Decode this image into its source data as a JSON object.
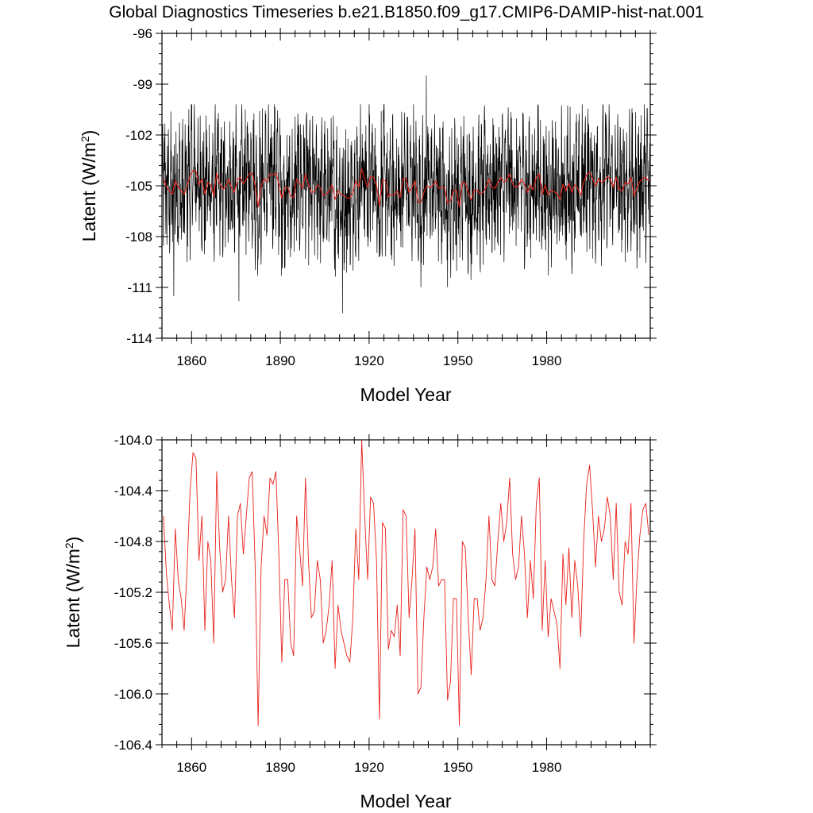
{
  "figure": {
    "title": "Global Diagnostics Timeseries b.e21.B1850.f09_g17.CMIP6-DAMIP-hist-nat.001"
  },
  "colors": {
    "monthly_series": "#000000",
    "annual_series": "#e8231c",
    "axes": "#000000"
  },
  "chart_data": [
    {
      "type": "line",
      "name": "top-panel",
      "xlabel": "Model Year",
      "ylabel": "Latent (W/m²)",
      "ylabel_main": "Latent (W/m",
      "ylabel_sup": "2",
      "ylabel_end": ")",
      "xlim": [
        1850,
        2015
      ],
      "ylim": [
        -114,
        -96
      ],
      "xticks": [
        1860,
        1890,
        1920,
        1950,
        1980
      ],
      "xtick_labels": [
        "1860",
        "1890",
        "1920",
        "1950",
        "1980"
      ],
      "yticks": [
        -114,
        -111,
        -108,
        -105,
        -102,
        -99,
        -96
      ],
      "ytick_labels": [
        "-114",
        "-111",
        "-108",
        "-105",
        "-102",
        "-99",
        "-96"
      ],
      "grid": false,
      "series": [
        {
          "style": "monthly",
          "color": "#000000",
          "description_hint": "monthly values oscillating roughly between -111 and -101, with extremes near -98.5 (1939) and -112.5 (1911)",
          "start_year": 1850,
          "step_years": 0.0833333,
          "n": 1980,
          "amplitude_center": -105.0,
          "notable_points": [
            {
              "x": 1939.3,
              "y": -98.5
            },
            {
              "x": 1911.0,
              "y": -112.5
            },
            {
              "x": 1876.0,
              "y": -111.8
            },
            {
              "x": 1854.0,
              "y": -111.5
            }
          ]
        },
        {
          "style": "annual",
          "color": "#e8231c",
          "ref": "bottom-panel.annual"
        }
      ]
    },
    {
      "type": "line",
      "name": "bottom-panel",
      "xlabel": "Model Year",
      "ylabel": "Latent (W/m²)",
      "ylabel_main": "Latent (W/m",
      "ylabel_sup": "2",
      "ylabel_end": ")",
      "xlim": [
        1850,
        2015
      ],
      "ylim": [
        -106.4,
        -104.0
      ],
      "xticks": [
        1860,
        1890,
        1920,
        1950,
        1980
      ],
      "xtick_labels": [
        "1860",
        "1890",
        "1920",
        "1950",
        "1980"
      ],
      "yticks": [
        -106.4,
        -106.0,
        -105.6,
        -105.2,
        -104.8,
        -104.4,
        -104.0
      ],
      "ytick_labels": [
        "-106.4",
        "-106.0",
        "-105.6",
        "-105.2",
        "-104.8",
        "-104.4",
        "-104.0"
      ],
      "grid": false,
      "series": [
        {
          "style": "annual",
          "color": "#e8231c",
          "x_start": 1850,
          "x_step": 1,
          "values": [
            -104.6,
            -105.05,
            -105.3,
            -105.5,
            -104.7,
            -105.1,
            -105.25,
            -105.5,
            -105.0,
            -104.4,
            -104.1,
            -104.15,
            -104.95,
            -104.6,
            -105.5,
            -104.8,
            -104.95,
            -105.6,
            -104.25,
            -104.85,
            -105.2,
            -105.1,
            -104.6,
            -105.1,
            -105.4,
            -104.6,
            -104.5,
            -104.9,
            -104.6,
            -104.3,
            -104.25,
            -105.0,
            -106.25,
            -105.0,
            -104.6,
            -104.75,
            -104.3,
            -104.35,
            -104.25,
            -104.9,
            -105.75,
            -105.1,
            -105.1,
            -105.6,
            -105.7,
            -104.6,
            -104.85,
            -105.15,
            -104.3,
            -104.95,
            -105.4,
            -105.35,
            -104.95,
            -105.1,
            -105.6,
            -105.5,
            -105.3,
            -104.95,
            -105.8,
            -105.3,
            -105.5,
            -105.6,
            -105.7,
            -105.75,
            -105.4,
            -104.7,
            -105.1,
            -104.0,
            -104.6,
            -105.1,
            -104.45,
            -104.5,
            -104.95,
            -106.2,
            -104.65,
            -104.7,
            -105.65,
            -105.5,
            -105.55,
            -105.3,
            -105.7,
            -104.55,
            -104.6,
            -105.4,
            -105.1,
            -104.7,
            -106.0,
            -105.95,
            -105.4,
            -105.0,
            -105.1,
            -105.0,
            -104.7,
            -105.15,
            -105.1,
            -105.1,
            -106.05,
            -105.9,
            -105.25,
            -105.25,
            -106.25,
            -104.8,
            -104.85,
            -105.4,
            -105.85,
            -105.25,
            -105.25,
            -105.5,
            -105.4,
            -105.1,
            -104.6,
            -105.1,
            -105.15,
            -104.8,
            -104.5,
            -104.8,
            -104.65,
            -104.3,
            -104.9,
            -105.1,
            -105.0,
            -104.6,
            -104.9,
            -105.4,
            -104.95,
            -105.25,
            -104.5,
            -104.3,
            -105.5,
            -104.95,
            -105.55,
            -105.25,
            -105.35,
            -105.45,
            -105.8,
            -104.9,
            -105.3,
            -104.85,
            -105.4,
            -104.95,
            -105.15,
            -105.55,
            -104.8,
            -104.35,
            -104.2,
            -104.55,
            -105.0,
            -104.6,
            -104.8,
            -104.7,
            -104.45,
            -104.6,
            -105.1,
            -104.5,
            -105.2,
            -105.3,
            -104.8,
            -104.9,
            -104.5,
            -105.6,
            -105.1,
            -104.75,
            -104.55,
            -104.5,
            -104.75
          ]
        }
      ]
    }
  ]
}
